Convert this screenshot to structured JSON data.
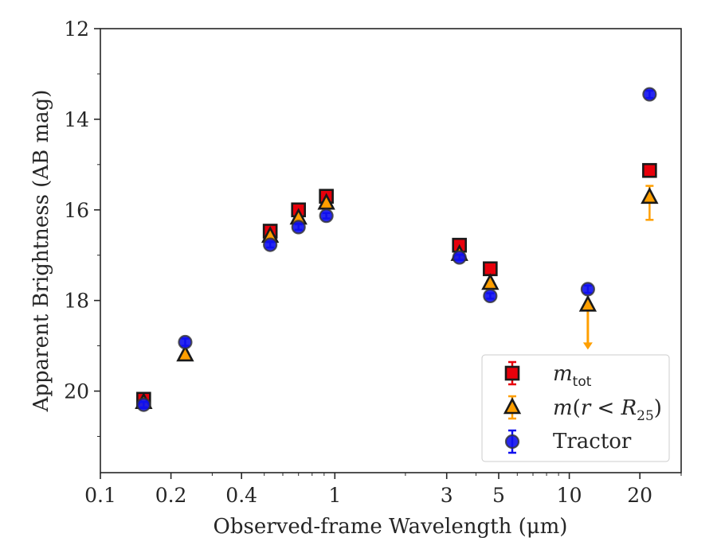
{
  "chart_data": {
    "type": "scatter",
    "xlabel": "Observed-frame Wavelength (μm)",
    "ylabel": "Apparent Brightness (AB mag)",
    "xscale": "log",
    "xlim": [
      0.1,
      30
    ],
    "ylim": [
      21.8,
      12
    ],
    "y_inverted": true,
    "xticks": [
      0.1,
      0.2,
      0.4,
      1,
      3,
      5,
      10,
      20
    ],
    "xtick_labels": [
      "0.1",
      "0.2",
      "0.4",
      "1",
      "3",
      "5",
      "10",
      "20"
    ],
    "yticks": [
      12,
      14,
      16,
      18,
      20
    ],
    "ytick_labels": [
      "12",
      "14",
      "16",
      "18",
      "20"
    ],
    "grid": false,
    "legend_position": "lower-right",
    "series": [
      {
        "name": "m_tot",
        "marker": "square",
        "color": "#e8000b",
        "edge_color": "#1a1a1a",
        "points": [
          {
            "x": 0.153,
            "y": 20.18,
            "err": 0.08
          },
          {
            "x": 0.53,
            "y": 16.47,
            "err": 0.05
          },
          {
            "x": 0.7,
            "y": 16.0,
            "err": 0.05
          },
          {
            "x": 0.92,
            "y": 15.7,
            "err": 0.05
          },
          {
            "x": 3.4,
            "y": 16.78,
            "err": 0.05
          },
          {
            "x": 4.6,
            "y": 17.3,
            "err": 0.05
          },
          {
            "x": 22.0,
            "y": 15.13,
            "err": 0.05
          }
        ]
      },
      {
        "name": "m(r < R25)",
        "marker": "triangle",
        "color": "#ff9f00",
        "edge_color": "#1a1a1a",
        "points": [
          {
            "x": 0.153,
            "y": 20.25,
            "err": 0.05
          },
          {
            "x": 0.23,
            "y": 19.2,
            "err": 0.05
          },
          {
            "x": 0.53,
            "y": 16.58,
            "err": 0.05
          },
          {
            "x": 0.7,
            "y": 16.18,
            "err": 0.05
          },
          {
            "x": 0.92,
            "y": 15.85,
            "err": 0.05
          },
          {
            "x": 3.4,
            "y": 16.98,
            "err": 0.05
          },
          {
            "x": 4.6,
            "y": 17.62,
            "err": 0.05
          },
          {
            "x": 12.0,
            "y": 18.1,
            "upper_limit": true,
            "limit_to": 19.05
          },
          {
            "x": 22.0,
            "y": 15.72,
            "err_low": 0.5,
            "err_high": 0.25
          }
        ]
      },
      {
        "name": "Tractor",
        "marker": "circle",
        "color": "#1010ee",
        "edge_color": "#333333",
        "points": [
          {
            "x": 0.153,
            "y": 20.3,
            "err": 0.06
          },
          {
            "x": 0.23,
            "y": 18.92,
            "err": 0.08
          },
          {
            "x": 0.53,
            "y": 16.77,
            "err": 0.06
          },
          {
            "x": 0.7,
            "y": 16.38,
            "err": 0.06
          },
          {
            "x": 0.92,
            "y": 16.13,
            "err": 0.06
          },
          {
            "x": 3.4,
            "y": 17.05,
            "err": 0.06
          },
          {
            "x": 4.6,
            "y": 17.9,
            "err": 0.06
          },
          {
            "x": 12.0,
            "y": 17.75,
            "err": 0.08
          },
          {
            "x": 22.0,
            "y": 13.45,
            "err": 0.08
          }
        ]
      }
    ]
  }
}
